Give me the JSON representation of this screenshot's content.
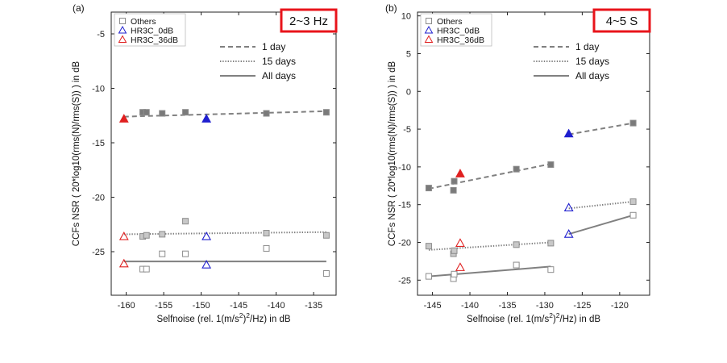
{
  "chart_data": [
    {
      "type": "scatter",
      "panel_label": "(a)",
      "badge": "2~3 Hz",
      "xlabel_parts": [
        "Selfnoise (rel. 1(m/s",
        "2",
        ")",
        "2",
        "/Hz) in dB"
      ],
      "ylabel": "CCFs NSR ( 20*log10(rms(N)/rms(S)) ) in dB",
      "xlim": [
        -162,
        -132
      ],
      "ylim": [
        -29,
        -3
      ],
      "xticks": [
        -160,
        -155,
        -150,
        -145,
        -140,
        -135
      ],
      "yticks": [
        -25,
        -20,
        -15,
        -10,
        -5
      ],
      "grid": false,
      "marker_legend": [
        "Others",
        "HR3C_0dB",
        "HR3C_36dB"
      ],
      "line_legend": [
        "1 day",
        "15 days",
        "All days"
      ],
      "series": [
        {
          "group": "1 day",
          "marker": "Others",
          "x": [
            -157.8,
            -157.3,
            -155.2,
            -152.1,
            -141.3,
            -133.3
          ],
          "y": [
            -12.2,
            -12.2,
            -12.3,
            -12.2,
            -12.3,
            -12.2
          ]
        },
        {
          "group": "1 day",
          "marker": "HR3C_36dB",
          "x": [
            -160.3
          ],
          "y": [
            -12.8
          ]
        },
        {
          "group": "1 day",
          "marker": "HR3C_0dB",
          "x": [
            -149.3
          ],
          "y": [
            -12.8
          ]
        },
        {
          "group": "15 days",
          "marker": "Others",
          "x": [
            -157.8,
            -157.3,
            -155.2,
            -152.1,
            -141.3,
            -133.3
          ],
          "y": [
            -23.6,
            -23.5,
            -23.4,
            -22.2,
            -23.3,
            -23.5
          ]
        },
        {
          "group": "15 days",
          "marker": "HR3C_36dB",
          "x": [
            -160.3
          ],
          "y": [
            -23.6
          ]
        },
        {
          "group": "15 days",
          "marker": "HR3C_0dB",
          "x": [
            -149.3
          ],
          "y": [
            -23.6
          ]
        },
        {
          "group": "All days",
          "marker": "Others",
          "x": [
            -157.8,
            -157.3,
            -155.2,
            -152.1,
            -141.3,
            -133.3
          ],
          "y": [
            -26.6,
            -26.6,
            -25.2,
            -25.2,
            -24.7,
            -27.0
          ]
        },
        {
          "group": "All days",
          "marker": "HR3C_36dB",
          "x": [
            -160.3
          ],
          "y": [
            -26.1
          ]
        },
        {
          "group": "All days",
          "marker": "HR3C_0dB",
          "x": [
            -149.3
          ],
          "y": [
            -26.2
          ]
        }
      ],
      "fits": [
        {
          "group": "1 day",
          "x": [
            -160.3,
            -133.3
          ],
          "y": [
            -12.6,
            -12.1
          ]
        },
        {
          "group": "15 days",
          "x": [
            -160.3,
            -133.3
          ],
          "y": [
            -23.4,
            -23.2
          ]
        },
        {
          "group": "All days",
          "x": [
            -160.3,
            -133.3
          ],
          "y": [
            -25.9,
            -25.9
          ]
        }
      ]
    },
    {
      "type": "scatter",
      "panel_label": "(b)",
      "badge": "4~5 S",
      "xlabel_parts": [
        "Selfnoise (rel. 1(m/s",
        "2",
        ")",
        "2",
        "/Hz) in dB"
      ],
      "ylabel": "CCFs NSR ( 20*log10(rms(N)/rms(S)) ) in dB",
      "xlim": [
        -147,
        -116
      ],
      "ylim": [
        -27,
        10.5
      ],
      "xticks": [
        -145,
        -140,
        -135,
        -130,
        -125,
        -120
      ],
      "yticks": [
        -25,
        -20,
        -15,
        -10,
        -5,
        0,
        5,
        10
      ],
      "grid": false,
      "marker_legend": [
        "Others",
        "HR3C_0dB",
        "HR3C_36dB"
      ],
      "line_legend": [
        "1 day",
        "15 days",
        "All days"
      ],
      "series": [
        {
          "group": "1 day",
          "marker": "Others",
          "x": [
            -145.5,
            -142.2,
            -142.1,
            -133.8,
            -129.2,
            -118.2
          ],
          "y": [
            -12.8,
            -13.1,
            -11.9,
            -10.3,
            -9.7,
            -4.2
          ]
        },
        {
          "group": "1 day",
          "marker": "HR3C_36dB",
          "x": [
            -141.3
          ],
          "y": [
            -10.9
          ]
        },
        {
          "group": "1 day",
          "marker": "HR3C_0dB",
          "x": [
            -126.8
          ],
          "y": [
            -5.6
          ]
        },
        {
          "group": "15 days",
          "marker": "Others",
          "x": [
            -145.5,
            -142.2,
            -142.1,
            -133.8,
            -129.2,
            -118.2
          ],
          "y": [
            -20.5,
            -21.5,
            -21.1,
            -20.3,
            -20.1,
            -14.6
          ]
        },
        {
          "group": "15 days",
          "marker": "HR3C_36dB",
          "x": [
            -141.3
          ],
          "y": [
            -20.1
          ]
        },
        {
          "group": "15 days",
          "marker": "HR3C_0dB",
          "x": [
            -126.8
          ],
          "y": [
            -15.4
          ]
        },
        {
          "group": "All days",
          "marker": "Others",
          "x": [
            -145.5,
            -142.2,
            -142.1,
            -133.8,
            -129.2,
            -118.2
          ],
          "y": [
            -24.5,
            -24.8,
            -24.2,
            -23.0,
            -23.6,
            -16.4
          ]
        },
        {
          "group": "All days",
          "marker": "HR3C_36dB",
          "x": [
            -141.3
          ],
          "y": [
            -23.3
          ]
        },
        {
          "group": "All days",
          "marker": "HR3C_0dB",
          "x": [
            -126.8
          ],
          "y": [
            -18.9
          ]
        }
      ],
      "fits": [
        {
          "group": "1 day",
          "x": [
            -145.5,
            -129.2
          ],
          "y": [
            -12.9,
            -9.6
          ]
        },
        {
          "group": "1 day",
          "x": [
            -126.8,
            -118.2
          ],
          "y": [
            -5.7,
            -4.2
          ]
        },
        {
          "group": "15 days",
          "x": [
            -145.5,
            -129.2
          ],
          "y": [
            -21.0,
            -20.0
          ]
        },
        {
          "group": "15 days",
          "x": [
            -126.8,
            -118.2
          ],
          "y": [
            -15.5,
            -14.6
          ]
        },
        {
          "group": "All days",
          "x": [
            -145.5,
            -129.2
          ],
          "y": [
            -24.5,
            -23.2
          ]
        },
        {
          "group": "All days",
          "x": [
            -126.8,
            -118.2
          ],
          "y": [
            -18.9,
            -16.4
          ]
        }
      ]
    }
  ],
  "colors": {
    "others": "#8c8c8c",
    "others_fill": "#7a7a7a",
    "hr3c_0db": "#1f1fcf",
    "hr3c_36db": "#e02020",
    "fit_line": "#808080",
    "axis": "#222222",
    "badge_border": "#e8141b"
  }
}
